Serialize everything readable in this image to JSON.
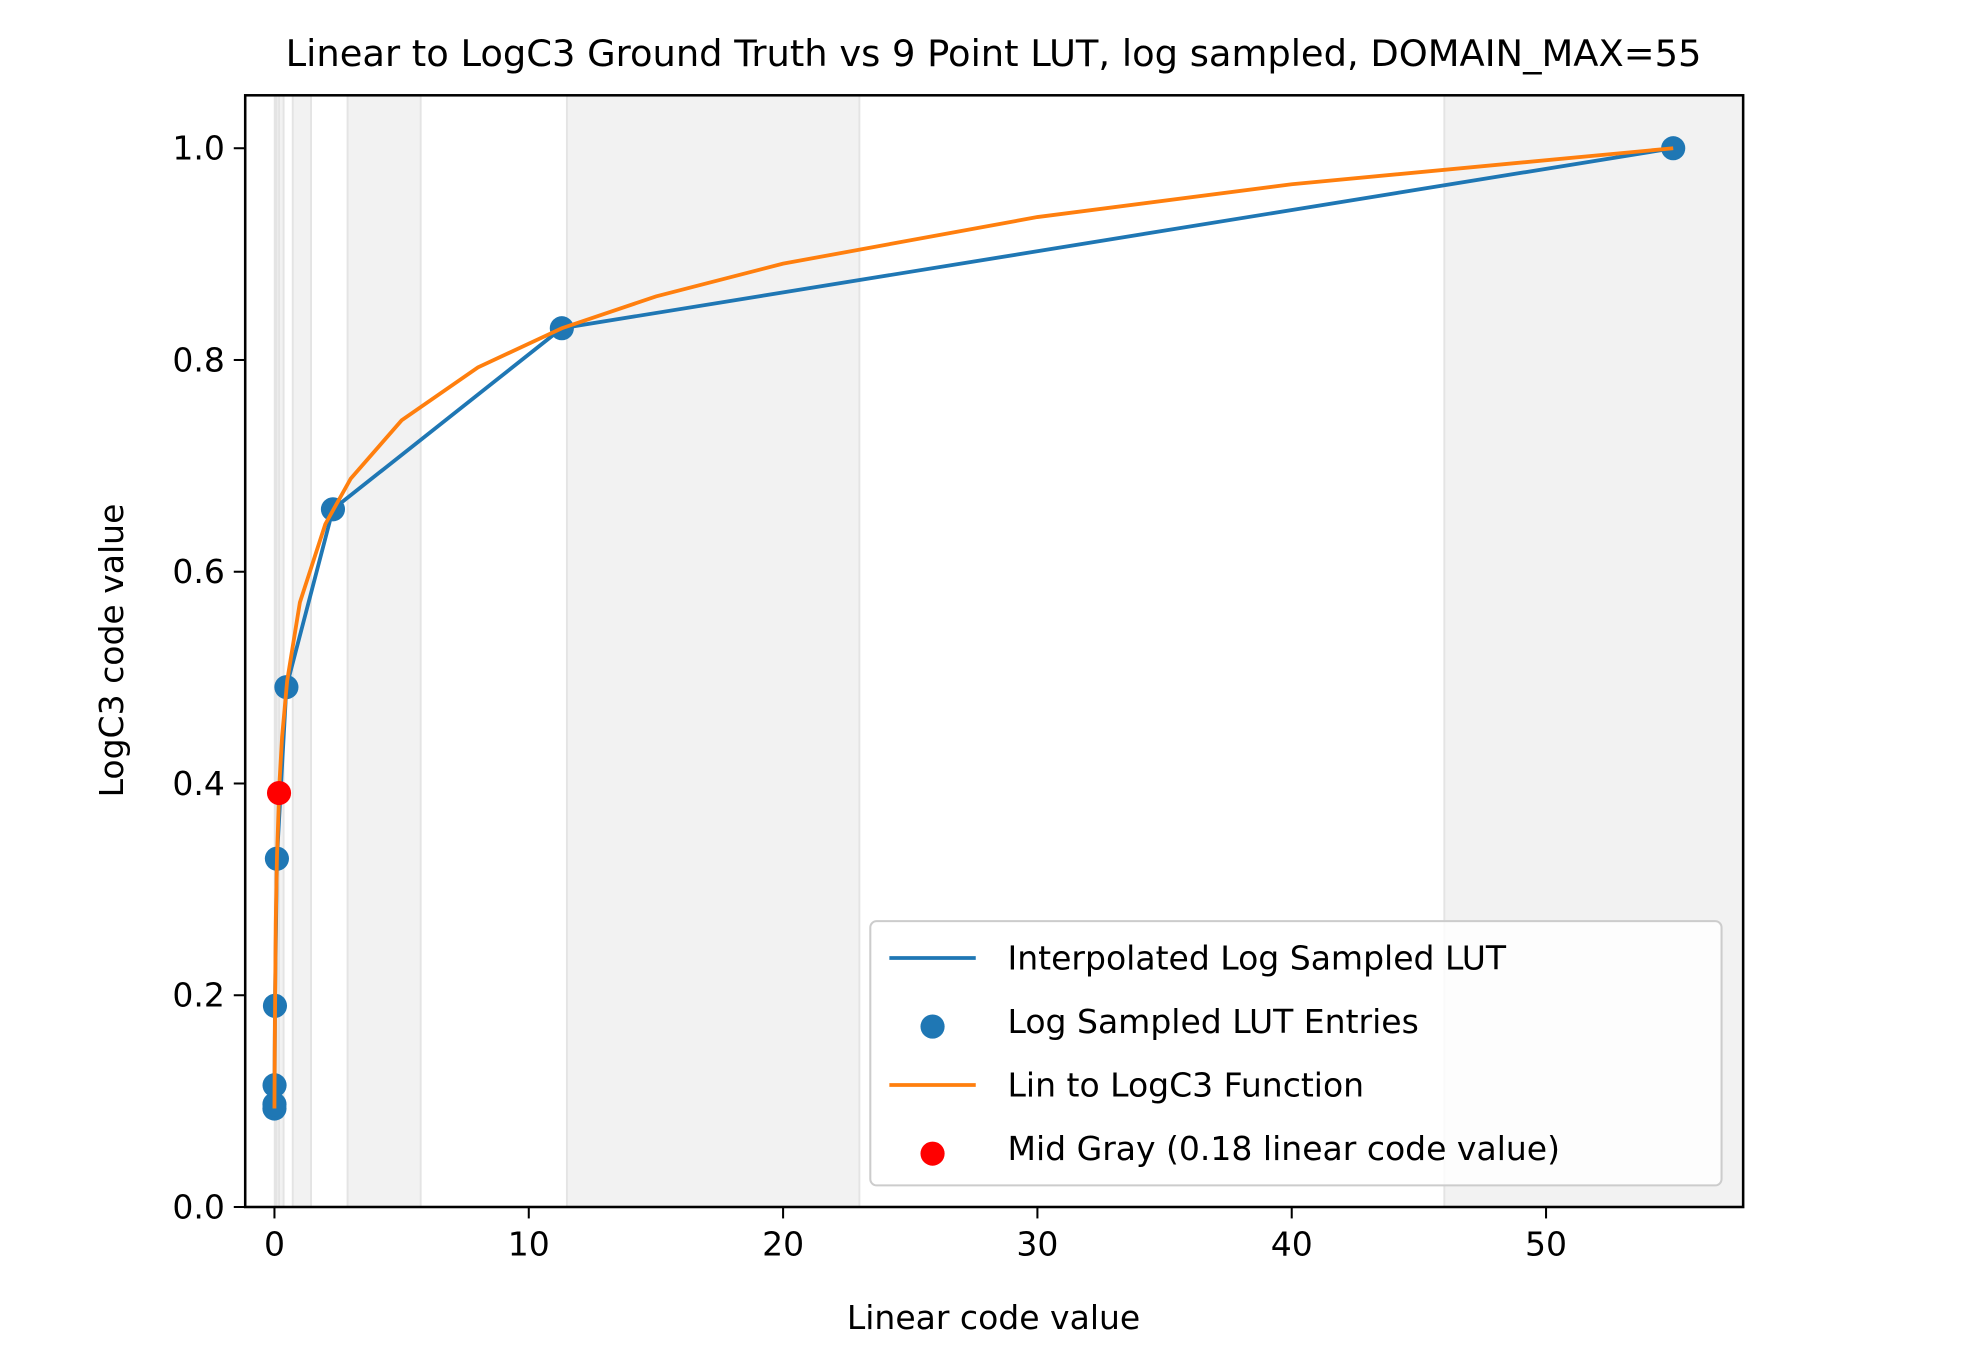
{
  "chart_data": {
    "type": "line",
    "title": "Linear to LogC3 Ground Truth vs 9 Point LUT, log sampled, DOMAIN_MAX=55",
    "x_label": "Linear code value",
    "y_label": "LogC3 code value",
    "xlim": [
      -1.15,
      57.75
    ],
    "ylim": [
      0,
      1.05
    ],
    "xticks": [
      0,
      10,
      20,
      30,
      40,
      50
    ],
    "yticks": [
      {
        "value": 0,
        "label": "0.0"
      },
      {
        "value": 0.2,
        "label": "0.2"
      },
      {
        "value": 0.4,
        "label": "0.4"
      },
      {
        "value": 0.6,
        "label": "0.6"
      },
      {
        "value": 0.8,
        "label": "0.8"
      },
      {
        "value": 1,
        "label": "1.0"
      }
    ],
    "shaded_spans": [
      [
        46,
        92
      ],
      [
        11.5,
        23
      ],
      [
        2.875,
        5.75
      ],
      [
        0.719,
        1.4375
      ],
      [
        0.18,
        0.36
      ],
      [
        0.045,
        0.09
      ],
      [
        0.011,
        0.022
      ]
    ],
    "span_color": "#f2f2f2",
    "legend": "lower right",
    "series": [
      {
        "name": "Interpolated Log Sampled LUT",
        "type": "line",
        "color": "#1f77b4",
        "x": [
          0,
          0.00083,
          0.00405,
          0.0198,
          0.0965,
          0.47,
          2.3,
          11.3,
          55
        ],
        "values": [
          0.093,
          0.097,
          0.115,
          0.19,
          0.329,
          0.491,
          0.659,
          0.83,
          1.0
        ]
      },
      {
        "name": "Log Sampled LUT Entries",
        "type": "scatter",
        "color": "#1f77b4",
        "x": [
          0,
          0.00083,
          0.00405,
          0.0198,
          0.0965,
          0.47,
          2.3,
          11.3,
          55
        ],
        "values": [
          0.093,
          0.097,
          0.115,
          0.19,
          0.329,
          0.491,
          0.659,
          0.83,
          1.0
        ]
      },
      {
        "name": "Lin to LogC3 Function",
        "type": "line",
        "color": "#ff7f0e",
        "x": [
          0,
          0.01,
          0.05,
          0.1,
          0.2,
          0.3,
          0.5,
          1,
          2,
          3,
          5,
          8,
          11.3,
          15,
          20,
          30,
          40,
          55
        ],
        "values": [
          0.093,
          0.146,
          0.267,
          0.332,
          0.402,
          0.444,
          0.497,
          0.571,
          0.645,
          0.688,
          0.743,
          0.793,
          0.83,
          0.86,
          0.891,
          0.935,
          0.966,
          1.0
        ]
      },
      {
        "name": "Mid Gray (0.18 linear code value)",
        "type": "scatter",
        "color": "#ff0000",
        "x": [
          0.18
        ],
        "values": [
          0.391
        ]
      }
    ]
  }
}
